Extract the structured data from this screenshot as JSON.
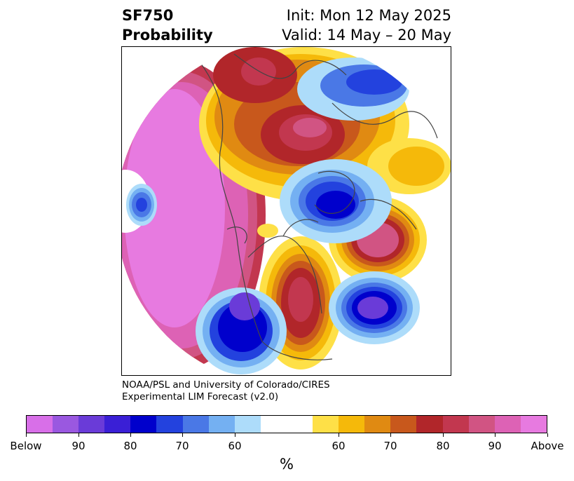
{
  "header": {
    "variable": "SF750",
    "product": "Probability",
    "init": "Init: Mon 12 May 2025",
    "valid": "Valid: 14 May – 20 May"
  },
  "credit": {
    "line1": "NOAA/PSL and University of Colorado/CIRES",
    "line2": "Experimental LIM Forecast (v2.0)"
  },
  "colorbar": {
    "unit": "%",
    "colors": [
      "#d86fe8",
      "#9a58e0",
      "#6a3bd8",
      "#3a1fd6",
      "#0000cc",
      "#2342de",
      "#4a78e6",
      "#74b0f2",
      "#addcfa",
      "#ffffff",
      "#ffffff",
      "#fee047",
      "#f5b90a",
      "#e08a12",
      "#c8581c",
      "#b1262a",
      "#c2374f",
      "#d15483",
      "#dd62b5",
      "#e77ae0"
    ],
    "tick_labels": [
      "Below",
      "90",
      "80",
      "70",
      "60",
      "60",
      "70",
      "80",
      "90",
      "Above"
    ]
  }
}
